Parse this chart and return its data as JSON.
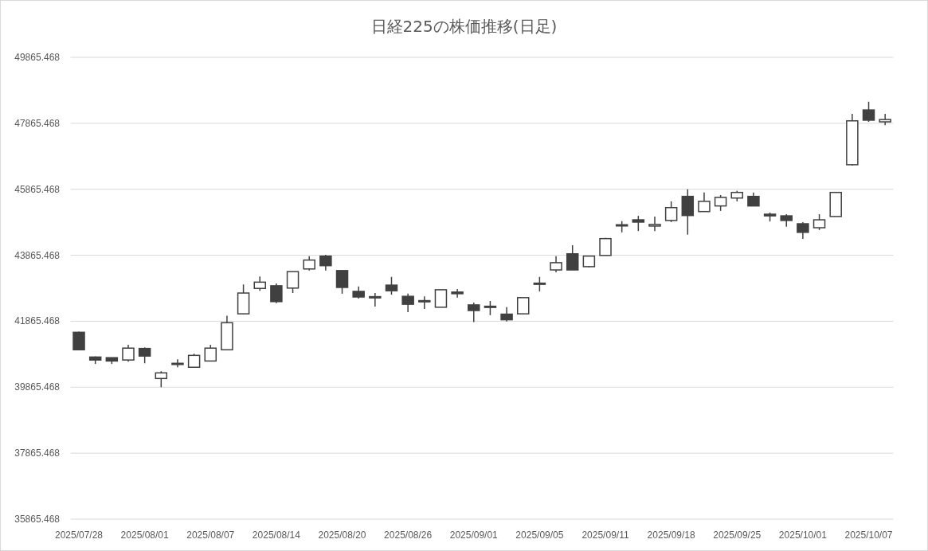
{
  "chart_data": {
    "type": "candlestick",
    "title": "日経225の株価推移(日足)",
    "categories": [
      "2025/07/28",
      null,
      null,
      null,
      "2025/08/01",
      null,
      null,
      null,
      "2025/08/07",
      null,
      null,
      null,
      "2025/08/14",
      null,
      null,
      null,
      "2025/08/20",
      null,
      null,
      null,
      "2025/08/26",
      null,
      null,
      null,
      "2025/09/01",
      null,
      null,
      null,
      "2025/09/05",
      null,
      null,
      null,
      "2025/09/11",
      null,
      null,
      null,
      "2025/09/18",
      null,
      null,
      null,
      "2025/09/25",
      null,
      null,
      null,
      "2025/10/01",
      null,
      null,
      null,
      "2025/10/07",
      null
    ],
    "ohlc": [
      [
        41530,
        41550,
        41000,
        41000
      ],
      [
        40780,
        40800,
        40570,
        40690
      ],
      [
        40760,
        40760,
        40570,
        40660
      ],
      [
        40690,
        41150,
        40640,
        41050
      ],
      [
        41040,
        41070,
        40590,
        40810
      ],
      [
        40130,
        40350,
        39865,
        40300
      ],
      [
        40590,
        40710,
        40470,
        40570
      ],
      [
        40470,
        40880,
        40470,
        40830
      ],
      [
        40660,
        41150,
        40660,
        41050
      ],
      [
        41000,
        42030,
        41000,
        41820
      ],
      [
        42090,
        42980,
        42070,
        42720
      ],
      [
        42860,
        43220,
        42790,
        43050
      ],
      [
        42940,
        43010,
        42410,
        42460
      ],
      [
        42870,
        43370,
        42720,
        43370
      ],
      [
        43450,
        43840,
        43400,
        43720
      ],
      [
        43840,
        43880,
        43400,
        43550
      ],
      [
        43400,
        43400,
        42700,
        42890
      ],
      [
        42770,
        42920,
        42550,
        42600
      ],
      [
        42610,
        42720,
        42310,
        42590
      ],
      [
        42960,
        43210,
        42670,
        42790
      ],
      [
        42620,
        42700,
        42140,
        42380
      ],
      [
        42490,
        42620,
        42240,
        42470
      ],
      [
        42290,
        42820,
        42290,
        42820
      ],
      [
        42750,
        42840,
        42580,
        42700
      ],
      [
        42360,
        42430,
        41840,
        42190
      ],
      [
        42320,
        42480,
        42050,
        42300
      ],
      [
        42080,
        42290,
        41860,
        41910
      ],
      [
        42090,
        42580,
        42090,
        42580
      ],
      [
        43000,
        43210,
        42770,
        43020
      ],
      [
        43420,
        43840,
        43350,
        43640
      ],
      [
        43910,
        44170,
        43420,
        43420
      ],
      [
        43520,
        43840,
        43500,
        43840
      ],
      [
        43860,
        44390,
        43860,
        44370
      ],
      [
        44770,
        44900,
        44560,
        44790
      ],
      [
        44940,
        45060,
        44600,
        44870
      ],
      [
        44750,
        45040,
        44600,
        44800
      ],
      [
        44920,
        45500,
        44870,
        45310
      ],
      [
        45650,
        45865,
        44490,
        45070
      ],
      [
        45190,
        45770,
        45190,
        45500
      ],
      [
        45360,
        45690,
        45210,
        45620
      ],
      [
        45600,
        45820,
        45500,
        45770
      ],
      [
        45650,
        45770,
        45360,
        45360
      ],
      [
        45110,
        45160,
        44890,
        45060
      ],
      [
        45060,
        45110,
        44730,
        44920
      ],
      [
        44820,
        44870,
        44360,
        44560
      ],
      [
        44700,
        45110,
        44630,
        44940
      ],
      [
        45040,
        45770,
        45040,
        45770
      ],
      [
        46610,
        48150,
        46580,
        47940
      ],
      [
        48270,
        48520,
        47910,
        47960
      ],
      [
        47910,
        48150,
        47810,
        47980
      ]
    ],
    "color": "#404040",
    "ylim": [
      35865.468,
      49865.468
    ],
    "yticks": [
      35865.468,
      37865.468,
      39865.468,
      41865.468,
      43865.468,
      45865.468,
      47865.468,
      49865.468
    ],
    "grid": "y"
  }
}
